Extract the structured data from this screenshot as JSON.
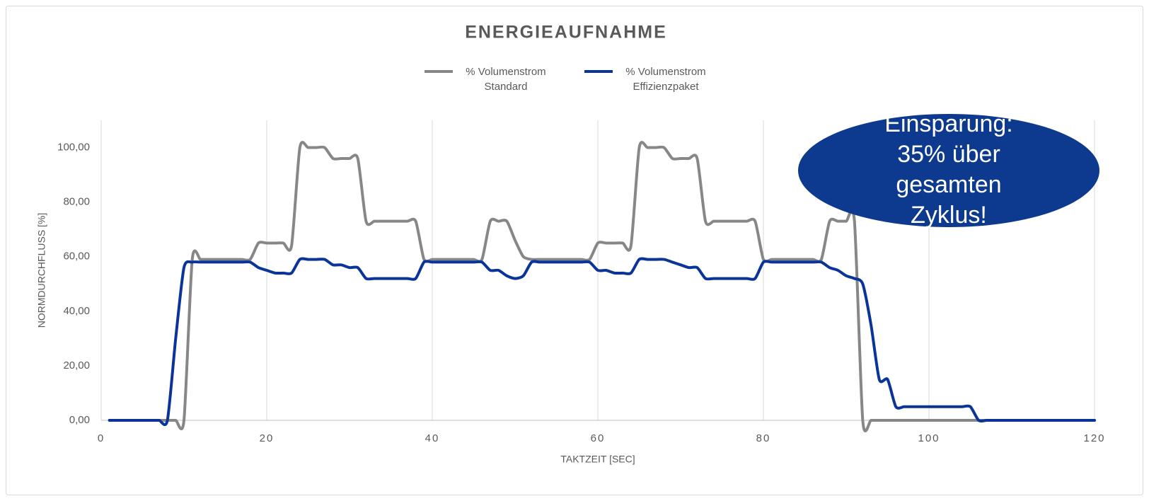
{
  "chart_data": {
    "type": "line",
    "title": "ENERGIEAUFNAHME",
    "x_label": "TAKTZEIT [SEC]",
    "y_label": "NORMDURCHFLUSS [%]",
    "annotation": [
      "Einsparung:",
      "35% über",
      "gesamten",
      "Zyklus!"
    ],
    "annotation_color": "#0d3a8e",
    "x": [
      1,
      2,
      3,
      4,
      5,
      6,
      7,
      8,
      9,
      10,
      11,
      12,
      13,
      14,
      15,
      16,
      17,
      18,
      19,
      20,
      21,
      22,
      23,
      24,
      25,
      26,
      27,
      28,
      29,
      30,
      31,
      32,
      33,
      34,
      35,
      36,
      37,
      38,
      39,
      40,
      41,
      42,
      43,
      44,
      45,
      46,
      47,
      48,
      49,
      50,
      51,
      52,
      53,
      54,
      55,
      56,
      57,
      58,
      59,
      60,
      61,
      62,
      63,
      64,
      65,
      66,
      67,
      68,
      69,
      70,
      71,
      72,
      73,
      74,
      75,
      76,
      77,
      78,
      79,
      80,
      81,
      82,
      83,
      84,
      85,
      86,
      87,
      88,
      89,
      90,
      91,
      92,
      93,
      94,
      95,
      96,
      97,
      98,
      99,
      100,
      101,
      102,
      103,
      104,
      105,
      106,
      107,
      108,
      109,
      110,
      111,
      112,
      113,
      114,
      115,
      116,
      117,
      118,
      119,
      120
    ],
    "series": [
      {
        "name": "% Volumenstrom Standard",
        "color": "#878787",
        "values": [
          0,
          0,
          0,
          0,
          0,
          0,
          0,
          0,
          0,
          0,
          59,
          59,
          59,
          59,
          59,
          59,
          59,
          59,
          65,
          65,
          65,
          65,
          64,
          100,
          100,
          100,
          100,
          96,
          96,
          96,
          96,
          73,
          73,
          73,
          73,
          73,
          73,
          73,
          59,
          59,
          59,
          59,
          59,
          59,
          59,
          59,
          73,
          73,
          73,
          66,
          60,
          59,
          59,
          59,
          59,
          59,
          59,
          59,
          59,
          65,
          65,
          65,
          65,
          64,
          100,
          100,
          100,
          100,
          96,
          96,
          96,
          96,
          73,
          73,
          73,
          73,
          73,
          73,
          73,
          59,
          59,
          59,
          59,
          59,
          59,
          59,
          59,
          73,
          73,
          73,
          73,
          0,
          0,
          0,
          0,
          0,
          0,
          0,
          0,
          0,
          0,
          0,
          0,
          0,
          0,
          0,
          0,
          0,
          0,
          0,
          0,
          0,
          0,
          0,
          0,
          0,
          0,
          0,
          0,
          0
        ]
      },
      {
        "name": "% Volumenstrom Effizienzpaket",
        "color": "#0a3497",
        "values": [
          0,
          0,
          0,
          0,
          0,
          0,
          0,
          0,
          30,
          56,
          58,
          58,
          58,
          58,
          58,
          58,
          58,
          58,
          56,
          55,
          54,
          54,
          54,
          59,
          59,
          59,
          59,
          57,
          57,
          56,
          56,
          52,
          52,
          52,
          52,
          52,
          52,
          52,
          58,
          58,
          58,
          58,
          58,
          58,
          58,
          58,
          55,
          55,
          53,
          52,
          53,
          58,
          58,
          58,
          58,
          58,
          58,
          58,
          58,
          55,
          55,
          54,
          54,
          54,
          59,
          59,
          59,
          59,
          58,
          57,
          56,
          56,
          52,
          52,
          52,
          52,
          52,
          52,
          52,
          58,
          58,
          58,
          58,
          58,
          58,
          58,
          58,
          56,
          55,
          53,
          52,
          50,
          35,
          15,
          15,
          5,
          5,
          5,
          5,
          5,
          5,
          5,
          5,
          5,
          5,
          0,
          0,
          0,
          0,
          0,
          0,
          0,
          0,
          0,
          0,
          0,
          0,
          0,
          0,
          0
        ]
      }
    ],
    "xlim": [
      0,
      120
    ],
    "xticks": [
      0,
      20,
      40,
      60,
      80,
      100,
      120
    ],
    "ylim": [
      0,
      110
    ],
    "yticks": [
      {
        "value": 0,
        "label": "0,00"
      },
      {
        "value": 20,
        "label": "20,00"
      },
      {
        "value": 40,
        "label": "40,00"
      },
      {
        "value": 60,
        "label": "60,00"
      },
      {
        "value": 80,
        "label": "80,00"
      },
      {
        "value": 100,
        "label": "100,00"
      }
    ],
    "grid": "x",
    "legend": "top"
  }
}
